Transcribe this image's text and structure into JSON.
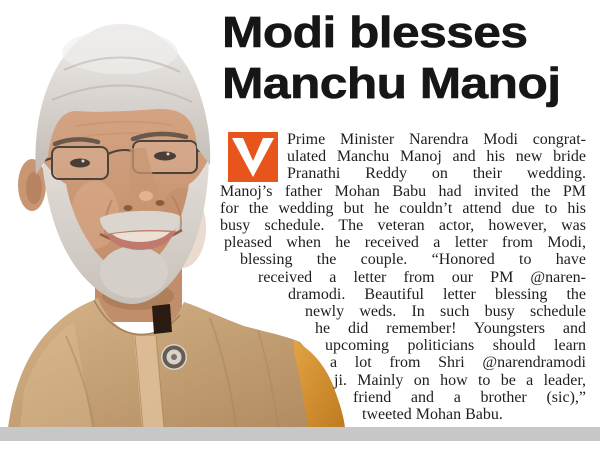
{
  "headline": {
    "line1": "Modi blesses",
    "line2": "Manchu Manoj",
    "color": "#161616"
  },
  "body": {
    "icon": {
      "name": "v-checkmark-logo",
      "background_color": "#e7551d",
      "glyph_color": "#ffffff"
    },
    "text_color": "#1e1e1e",
    "lines": [
      {
        "text": "Prime Minister Narendra Modi congrat-",
        "indent": 67
      },
      {
        "text": "ulated Manchu Manoj and his new bride",
        "indent": 67
      },
      {
        "text": "Pranathi Reddy on their wedding.",
        "indent": 67
      },
      {
        "text": "Manoj’s father Mohan Babu had invited the PM",
        "indent": 0
      },
      {
        "text": "for the wedding but he couldn’t attend due to his",
        "indent": 0
      },
      {
        "text": "busy schedule. The veteran actor, however, was",
        "indent": 0
      },
      {
        "text": "pleased when he received a letter from Modi,",
        "indent": 4
      },
      {
        "text": "blessing the couple. “Honored to have",
        "indent": 20
      },
      {
        "text": "received a letter from our PM @naren-",
        "indent": 38
      },
      {
        "text": "dramodi. Beautiful letter blessing the",
        "indent": 68
      },
      {
        "text": "newly weds. In such busy schedule",
        "indent": 85
      },
      {
        "text": "he did remember! Youngsters and",
        "indent": 95
      },
      {
        "text": "upcoming politicians should learn",
        "indent": 105
      },
      {
        "text": "a lot from Shri @narendramodi",
        "indent": 110
      },
      {
        "text": "ji. Mainly on how to be a leader,",
        "indent": 114
      },
      {
        "text": "friend and a brother (sic),”",
        "indent": 133
      },
      {
        "text": "tweeted Mohan Babu.",
        "indent": 142,
        "justify": false
      }
    ]
  },
  "photo": {
    "description": "Cut-out portrait of Narendra Modi smiling, gray hair, rimless glasses, white beard, tan kurta with collar button and amber stole edge",
    "palette": {
      "hair": "#c9c1ba",
      "hair_highlight": "#efedeb",
      "skin": "#d2a183",
      "skin_shadow": "#a87a58",
      "beard": "#d8d2cc",
      "kurta": "#c9a377",
      "kurta_highlight": "#dfc09a",
      "amber_edge": "#d89533",
      "collar_gap": "#2a1c12"
    }
  },
  "footer": {
    "bar_color": "#c5c7c9"
  }
}
